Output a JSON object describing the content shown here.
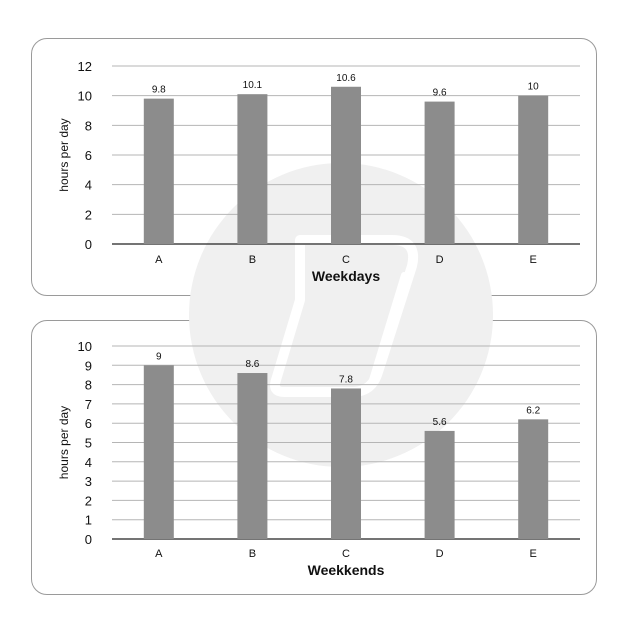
{
  "chart_data": [
    {
      "type": "bar",
      "title": "",
      "xlabel": "Weekdays",
      "ylabel": "hours per day",
      "categories": [
        "A",
        "B",
        "C",
        "D",
        "E"
      ],
      "values": [
        9.8,
        10.1,
        10.6,
        9.6,
        10
      ],
      "data_labels": [
        "9.8",
        "10.1",
        "10.6",
        "9.6",
        "10"
      ],
      "ylim": [
        0,
        12
      ],
      "yticks": [
        0,
        2,
        4,
        6,
        8,
        10,
        12
      ],
      "grid": true,
      "bar_color": "#8c8c8c"
    },
    {
      "type": "bar",
      "title": "",
      "xlabel": "Weekkends",
      "ylabel": "hours per day",
      "categories": [
        "A",
        "B",
        "C",
        "D",
        "E"
      ],
      "values": [
        9,
        8.6,
        7.8,
        5.6,
        6.2
      ],
      "data_labels": [
        "9",
        "8.6",
        "7.8",
        "5.6",
        "6.2"
      ],
      "ylim": [
        0,
        10
      ],
      "yticks": [
        0,
        1,
        2,
        3,
        4,
        5,
        6,
        7,
        8,
        9,
        10
      ],
      "grid": true,
      "bar_color": "#8c8c8c"
    }
  ],
  "watermark": {
    "name": "document-logo-watermark",
    "color": "#f0f0f0"
  }
}
